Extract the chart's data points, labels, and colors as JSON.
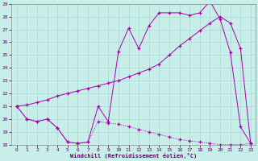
{
  "xlabel": "Windchill (Refroidissement éolien,°C)",
  "xlim": [
    -0.5,
    23.5
  ],
  "ylim": [
    18,
    29
  ],
  "xticks": [
    0,
    1,
    2,
    3,
    4,
    5,
    6,
    7,
    8,
    9,
    10,
    11,
    12,
    13,
    14,
    15,
    16,
    17,
    18,
    19,
    20,
    21,
    22,
    23
  ],
  "yticks": [
    18,
    19,
    20,
    21,
    22,
    23,
    24,
    25,
    26,
    27,
    28,
    29
  ],
  "background_color": "#c8eeea",
  "grid_color": "#aad8d0",
  "line_color": "#aa00aa",
  "line_A_x": [
    0,
    1,
    2,
    3,
    4,
    5,
    6,
    7,
    8,
    9,
    10,
    11,
    12,
    13,
    14,
    15,
    16,
    17,
    18,
    19,
    20,
    21,
    22,
    23
  ],
  "line_A_y": [
    21.0,
    20.0,
    19.8,
    20.0,
    19.3,
    18.2,
    18.1,
    18.2,
    21.0,
    19.8,
    25.3,
    27.1,
    25.5,
    27.3,
    28.3,
    28.3,
    28.3,
    28.1,
    28.3,
    29.2,
    27.8,
    25.2,
    19.4,
    18.1
  ],
  "line_B_x": [
    0,
    1,
    2,
    3,
    4,
    5,
    6,
    7,
    8,
    9,
    10,
    11,
    12,
    13,
    14,
    15,
    16,
    17,
    18,
    19,
    20,
    21,
    22,
    23
  ],
  "line_B_y": [
    21.0,
    21.1,
    21.3,
    21.5,
    21.8,
    22.0,
    22.2,
    22.4,
    22.6,
    22.8,
    23.0,
    23.3,
    23.6,
    23.9,
    24.3,
    25.0,
    25.7,
    26.3,
    26.9,
    27.5,
    28.0,
    27.5,
    25.5,
    18.1
  ],
  "line_C_x": [
    0,
    1,
    2,
    3,
    4,
    5,
    6,
    7,
    8,
    9,
    10,
    11,
    12,
    13,
    14,
    15,
    16,
    17,
    18,
    19,
    20,
    21,
    22,
    23
  ],
  "line_C_y": [
    21.0,
    20.0,
    19.8,
    20.0,
    19.3,
    18.2,
    18.1,
    18.2,
    19.8,
    19.7,
    19.6,
    19.4,
    19.2,
    19.0,
    18.8,
    18.6,
    18.4,
    18.3,
    18.2,
    18.1,
    18.0,
    18.0,
    18.0,
    18.1
  ]
}
